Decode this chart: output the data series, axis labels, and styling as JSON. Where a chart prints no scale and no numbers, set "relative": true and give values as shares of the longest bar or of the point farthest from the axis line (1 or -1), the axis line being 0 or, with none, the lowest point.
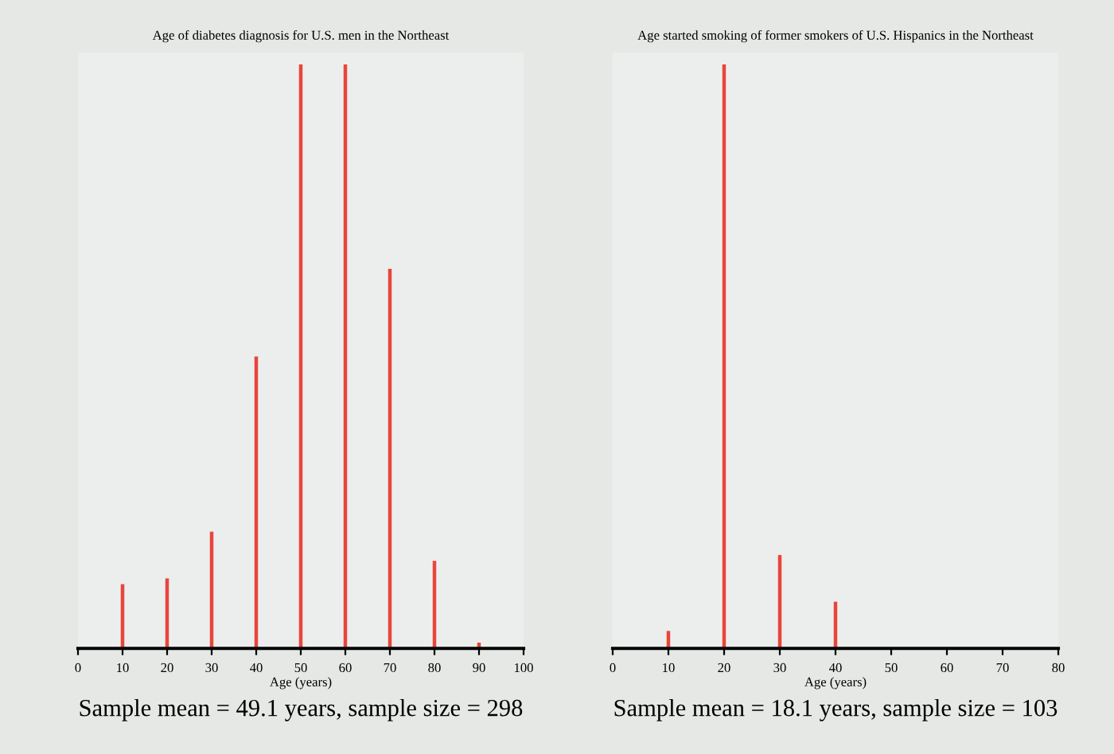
{
  "chart_data": [
    {
      "type": "bar",
      "title": "Age of diabetes diagnosis for U.S. men in the Northeast",
      "xlabel": "Age (years)",
      "x": [
        10,
        20,
        30,
        40,
        50,
        60,
        70,
        80,
        90
      ],
      "values": [
        0.11,
        0.12,
        0.2,
        0.5,
        1,
        1,
        0.65,
        0.15,
        0.01
      ],
      "color": "#e8453c",
      "relative": true,
      "xlim": [
        0,
        100
      ],
      "xticks": [
        0,
        10,
        20,
        30,
        40,
        50,
        60,
        70,
        80,
        90,
        100
      ],
      "tick_labels": "x",
      "annotations": [
        "Sample mean = 49.1 years, sample size = 298"
      ]
    },
    {
      "type": "bar",
      "title": "Age started smoking of former smokers of U.S. Hispanics in the Northeast",
      "xlabel": "Age (years)",
      "x": [
        10,
        20,
        30,
        40
      ],
      "values": [
        0.03,
        1,
        0.16,
        0.08
      ],
      "color": "#e8453c",
      "relative": true,
      "xlim": [
        0,
        80
      ],
      "xticks": [
        0,
        10,
        20,
        30,
        40,
        50,
        60,
        70,
        80
      ],
      "tick_labels": "x",
      "annotations": [
        "Sample mean = 18.1 years, sample size = 103"
      ]
    }
  ]
}
